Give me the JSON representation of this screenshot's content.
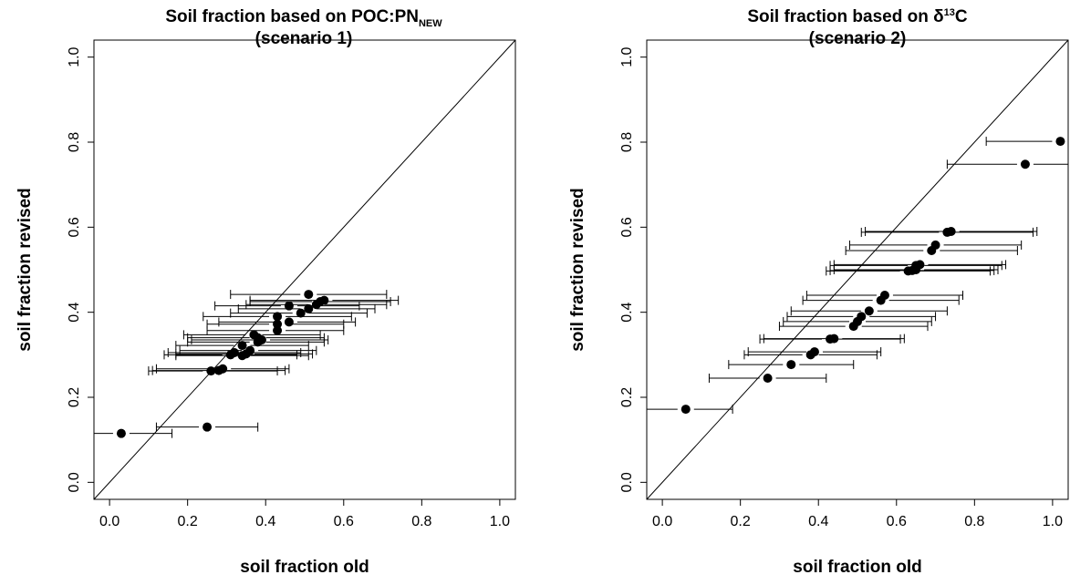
{
  "chart_data": [
    {
      "type": "scatter",
      "title": {
        "line1_main": "Soil fraction based on POC:PN",
        "line1_sub": "NEW",
        "line1_sup": "",
        "line1_after": "",
        "line2": "(scenario 1)"
      },
      "xlabel": "soil fraction old",
      "ylabel": "soil fraction revised",
      "xlim": [
        -0.04,
        1.04
      ],
      "ylim": [
        -0.04,
        1.04
      ],
      "x_ticks": [
        "0.0",
        "0.2",
        "0.4",
        "0.6",
        "0.8",
        "1.0"
      ],
      "y_ticks": [
        "0.0",
        "0.2",
        "0.4",
        "0.6",
        "0.8",
        "1.0"
      ],
      "reference_line": "1:1",
      "grid": false,
      "points": [
        {
          "x": 0.03,
          "y": 0.115,
          "xmin": -0.04,
          "xmax": 0.16
        },
        {
          "x": 0.25,
          "y": 0.13,
          "xmin": 0.12,
          "xmax": 0.38
        },
        {
          "x": 0.26,
          "y": 0.262,
          "xmin": 0.1,
          "xmax": 0.43
        },
        {
          "x": 0.28,
          "y": 0.263,
          "xmin": 0.11,
          "xmax": 0.45
        },
        {
          "x": 0.29,
          "y": 0.267,
          "xmin": 0.12,
          "xmax": 0.46
        },
        {
          "x": 0.31,
          "y": 0.3,
          "xmin": 0.14,
          "xmax": 0.48
        },
        {
          "x": 0.32,
          "y": 0.305,
          "xmin": 0.15,
          "xmax": 0.49
        },
        {
          "x": 0.34,
          "y": 0.298,
          "xmin": 0.17,
          "xmax": 0.51
        },
        {
          "x": 0.35,
          "y": 0.302,
          "xmin": 0.17,
          "xmax": 0.52
        },
        {
          "x": 0.36,
          "y": 0.31,
          "xmin": 0.18,
          "xmax": 0.53
        },
        {
          "x": 0.34,
          "y": 0.322,
          "xmin": 0.17,
          "xmax": 0.51
        },
        {
          "x": 0.38,
          "y": 0.33,
          "xmin": 0.2,
          "xmax": 0.55
        },
        {
          "x": 0.39,
          "y": 0.335,
          "xmin": 0.21,
          "xmax": 0.56
        },
        {
          "x": 0.37,
          "y": 0.347,
          "xmin": 0.19,
          "xmax": 0.54
        },
        {
          "x": 0.38,
          "y": 0.34,
          "xmin": 0.2,
          "xmax": 0.55
        },
        {
          "x": 0.43,
          "y": 0.357,
          "xmin": 0.25,
          "xmax": 0.6
        },
        {
          "x": 0.43,
          "y": 0.372,
          "xmin": 0.25,
          "xmax": 0.6
        },
        {
          "x": 0.46,
          "y": 0.377,
          "xmin": 0.28,
          "xmax": 0.63
        },
        {
          "x": 0.43,
          "y": 0.39,
          "xmin": 0.24,
          "xmax": 0.62
        },
        {
          "x": 0.49,
          "y": 0.398,
          "xmin": 0.31,
          "xmax": 0.66
        },
        {
          "x": 0.51,
          "y": 0.408,
          "xmin": 0.33,
          "xmax": 0.68
        },
        {
          "x": 0.46,
          "y": 0.415,
          "xmin": 0.27,
          "xmax": 0.64
        },
        {
          "x": 0.53,
          "y": 0.418,
          "xmin": 0.35,
          "xmax": 0.71
        },
        {
          "x": 0.54,
          "y": 0.425,
          "xmin": 0.36,
          "xmax": 0.72
        },
        {
          "x": 0.55,
          "y": 0.428,
          "xmin": 0.36,
          "xmax": 0.74
        },
        {
          "x": 0.51,
          "y": 0.442,
          "xmin": 0.31,
          "xmax": 0.71
        }
      ]
    },
    {
      "type": "scatter",
      "title": {
        "line1_main": "Soil fraction based on δ",
        "line1_sub": "",
        "line1_sup": "13",
        "line1_after": "C",
        "line2": "(scenario 2)"
      },
      "xlabel": "soil fraction old",
      "ylabel": "soil fraction revised",
      "xlim": [
        -0.04,
        1.04
      ],
      "ylim": [
        -0.04,
        1.04
      ],
      "x_ticks": [
        "0.0",
        "0.2",
        "0.4",
        "0.6",
        "0.8",
        "1.0"
      ],
      "y_ticks": [
        "0.0",
        "0.2",
        "0.4",
        "0.6",
        "0.8",
        "1.0"
      ],
      "reference_line": "1:1",
      "grid": false,
      "points": [
        {
          "x": 0.06,
          "y": 0.172,
          "xmin": -0.04,
          "xmax": 0.18
        },
        {
          "x": 0.27,
          "y": 0.245,
          "xmin": 0.12,
          "xmax": 0.42
        },
        {
          "x": 0.33,
          "y": 0.277,
          "xmin": 0.17,
          "xmax": 0.49
        },
        {
          "x": 0.38,
          "y": 0.3,
          "xmin": 0.21,
          "xmax": 0.55
        },
        {
          "x": 0.39,
          "y": 0.307,
          "xmin": 0.22,
          "xmax": 0.56
        },
        {
          "x": 0.43,
          "y": 0.337,
          "xmin": 0.25,
          "xmax": 0.61
        },
        {
          "x": 0.44,
          "y": 0.338,
          "xmin": 0.26,
          "xmax": 0.62
        },
        {
          "x": 0.49,
          "y": 0.367,
          "xmin": 0.3,
          "xmax": 0.68
        },
        {
          "x": 0.5,
          "y": 0.378,
          "xmin": 0.31,
          "xmax": 0.69
        },
        {
          "x": 0.51,
          "y": 0.39,
          "xmin": 0.32,
          "xmax": 0.7
        },
        {
          "x": 0.53,
          "y": 0.403,
          "xmin": 0.33,
          "xmax": 0.73
        },
        {
          "x": 0.56,
          "y": 0.428,
          "xmin": 0.36,
          "xmax": 0.76
        },
        {
          "x": 0.57,
          "y": 0.44,
          "xmin": 0.37,
          "xmax": 0.77
        },
        {
          "x": 0.63,
          "y": 0.497,
          "xmin": 0.42,
          "xmax": 0.84
        },
        {
          "x": 0.64,
          "y": 0.498,
          "xmin": 0.43,
          "xmax": 0.85
        },
        {
          "x": 0.65,
          "y": 0.5,
          "xmin": 0.44,
          "xmax": 0.86
        },
        {
          "x": 0.65,
          "y": 0.51,
          "xmin": 0.43,
          "xmax": 0.87
        },
        {
          "x": 0.66,
          "y": 0.512,
          "xmin": 0.44,
          "xmax": 0.88
        },
        {
          "x": 0.69,
          "y": 0.545,
          "xmin": 0.47,
          "xmax": 0.91
        },
        {
          "x": 0.7,
          "y": 0.558,
          "xmin": 0.48,
          "xmax": 0.92
        },
        {
          "x": 0.73,
          "y": 0.588,
          "xmin": 0.51,
          "xmax": 0.95
        },
        {
          "x": 0.74,
          "y": 0.59,
          "xmin": 0.52,
          "xmax": 0.96
        },
        {
          "x": 0.93,
          "y": 0.748,
          "xmin": 0.73,
          "xmax": 1.04
        },
        {
          "x": 1.02,
          "y": 0.802,
          "xmin": 0.83,
          "xmax": 1.04
        }
      ]
    }
  ]
}
